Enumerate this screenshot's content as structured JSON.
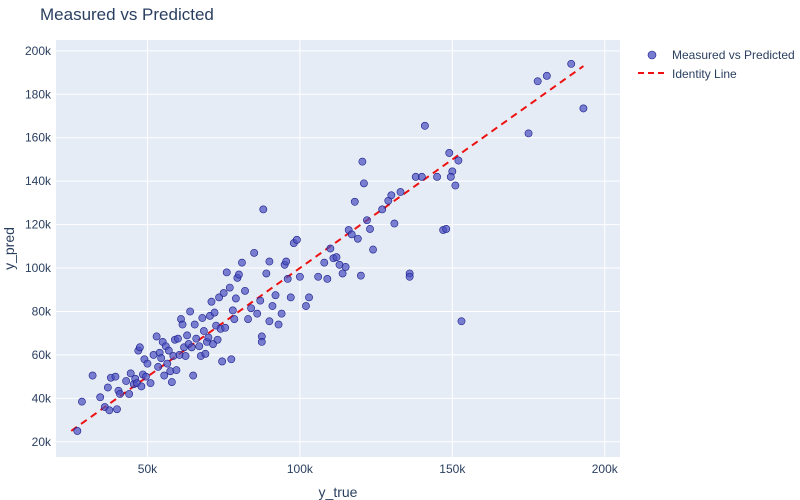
{
  "chart_data": {
    "type": "scatter",
    "title": "Measured vs Predicted",
    "xlabel": "y_true",
    "ylabel": "y_pred",
    "xlim": [
      20000,
      205000
    ],
    "ylim": [
      13000,
      205000
    ],
    "x_ticks": [
      {
        "value": 50000,
        "label": "50k"
      },
      {
        "value": 100000,
        "label": "100k"
      },
      {
        "value": 150000,
        "label": "150k"
      },
      {
        "value": 200000,
        "label": "200k"
      }
    ],
    "y_ticks": [
      {
        "value": 20000,
        "label": "20k"
      },
      {
        "value": 40000,
        "label": "40k"
      },
      {
        "value": 60000,
        "label": "60k"
      },
      {
        "value": 80000,
        "label": "80k"
      },
      {
        "value": 100000,
        "label": "100k"
      },
      {
        "value": 120000,
        "label": "120k"
      },
      {
        "value": 140000,
        "label": "140k"
      },
      {
        "value": 160000,
        "label": "160k"
      },
      {
        "value": 180000,
        "label": "180k"
      },
      {
        "value": 200000,
        "label": "200k"
      }
    ],
    "grid": true,
    "legend_position": "top-right-outside",
    "series": [
      {
        "name": "Measured vs Predicted",
        "kind": "markers",
        "color": "#4a4fc0",
        "x": [
          27000,
          28500,
          32000,
          34500,
          36000,
          37500,
          37000,
          38000,
          39500,
          40000,
          40500,
          41000,
          43000,
          44000,
          44500,
          45500,
          46000,
          46500,
          47000,
          47500,
          48000,
          48500,
          49000,
          49500,
          50000,
          51000,
          52000,
          53000,
          53500,
          54000,
          54500,
          55000,
          55500,
          56000,
          56500,
          57000,
          57500,
          58000,
          58500,
          59000,
          59500,
          60000,
          60500,
          61000,
          61500,
          62000,
          62500,
          63000,
          63500,
          64000,
          64500,
          65000,
          65500,
          66000,
          67000,
          67500,
          68000,
          68500,
          69000,
          69500,
          70000,
          70500,
          71000,
          71500,
          72000,
          72500,
          73000,
          73500,
          74000,
          74500,
          75000,
          75500,
          76000,
          77000,
          77500,
          78000,
          78500,
          79000,
          79500,
          80000,
          81000,
          82000,
          83000,
          84000,
          85000,
          86000,
          87000,
          87500,
          88000,
          89000,
          90000,
          91000,
          92000,
          93000,
          94000,
          95000,
          95500,
          96000,
          97000,
          98000,
          99000,
          100000,
          102000,
          103000,
          106000,
          108000,
          109000,
          110000,
          111000,
          112000,
          113000,
          114000,
          115000,
          116000,
          117000,
          118000,
          119000,
          120000,
          120500,
          121000,
          122000,
          123000,
          124000,
          127000,
          129000,
          130000,
          131000,
          133000,
          136000,
          138000,
          140000,
          141000,
          145000,
          147000,
          149000,
          150000,
          151000,
          152000,
          153000,
          175000,
          178000,
          181000,
          189000,
          193000,
          148000,
          149500,
          136000,
          87500,
          90000
        ],
        "y": [
          25000,
          38500,
          50500,
          40500,
          36000,
          34500,
          45000,
          49500,
          50000,
          35000,
          43500,
          42000,
          48000,
          42000,
          51500,
          46500,
          49000,
          47000,
          62000,
          63500,
          45500,
          51000,
          58000,
          50000,
          56000,
          47000,
          60000,
          68500,
          54500,
          61000,
          58500,
          66000,
          50500,
          64000,
          56000,
          62000,
          52500,
          47500,
          59500,
          67000,
          53000,
          67500,
          60000,
          76500,
          74000,
          63500,
          59500,
          69000,
          65000,
          80000,
          63500,
          50500,
          74000,
          67500,
          64000,
          59500,
          77000,
          71000,
          60500,
          66000,
          68000,
          78000,
          84500,
          65000,
          79500,
          73500,
          67000,
          86500,
          72000,
          57000,
          88500,
          72500,
          98000,
          91000,
          58000,
          80500,
          76500,
          86000,
          95500,
          97000,
          102500,
          89500,
          76500,
          81500,
          107000,
          79000,
          85000,
          68500,
          127000,
          97500,
          103000,
          82500,
          87500,
          74000,
          79000,
          101500,
          103000,
          95000,
          86500,
          111500,
          113000,
          96000,
          82500,
          86500,
          96000,
          102500,
          95000,
          109000,
          104500,
          105000,
          101500,
          97500,
          100500,
          117500,
          115500,
          130500,
          113500,
          96500,
          149000,
          139000,
          122000,
          118000,
          108500,
          127000,
          131000,
          133500,
          120500,
          135000,
          97500,
          142000,
          142000,
          165500,
          142000,
          117500,
          153000,
          144500,
          138000,
          149500,
          75500,
          162000,
          186000,
          188500,
          194000,
          173500,
          118000,
          142000,
          96000,
          66000,
          75500
        ]
      },
      {
        "name": "Identity Line",
        "kind": "line",
        "color": "#ee1111",
        "dash": "dashed",
        "x": [
          25000,
          193000
        ],
        "y": [
          25000,
          193000
        ]
      }
    ]
  }
}
